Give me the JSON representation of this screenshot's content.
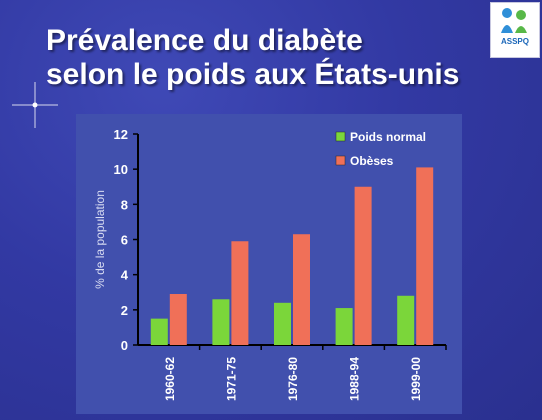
{
  "slide": {
    "title_line1": "Prévalence du diabète",
    "title_line2": "selon le poids aux États-unis",
    "logo_text": "ASSPQ",
    "background_color": "#3239a3",
    "panel_color": "#4150ad"
  },
  "chart_data": {
    "type": "bar",
    "title": "Prévalence du diabète selon le poids aux États-unis",
    "categories": [
      "1960-62",
      "1971-75",
      "1976-80",
      "1988-94",
      "1999-00"
    ],
    "series": [
      {
        "name": "Poids normal",
        "color": "#7bd63a",
        "values": [
          1.5,
          2.6,
          2.4,
          2.1,
          2.8
        ]
      },
      {
        "name": "Obèses",
        "color": "#f07058",
        "values": [
          2.9,
          5.9,
          6.3,
          9.0,
          10.1
        ]
      }
    ],
    "ylabel": "% de la population",
    "ylim": [
      0,
      12
    ],
    "yticks": [
      0,
      2,
      4,
      6,
      8,
      10,
      12
    ],
    "grid": false,
    "legend_position": "top-right"
  }
}
